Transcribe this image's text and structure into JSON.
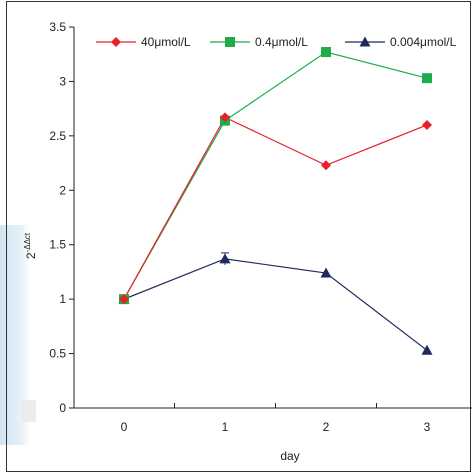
{
  "chart_data": {
    "type": "line",
    "title": "",
    "xlabel": "day",
    "ylabel": "2-ΔΔct",
    "ylabel_base": "2",
    "ylabel_exp": "-ΔΔct",
    "categories": [
      "0",
      "1",
      "2",
      "3"
    ],
    "x": [
      0,
      1,
      2,
      3
    ],
    "ylim": [
      0,
      3.5
    ],
    "yticks": [
      0,
      0.5,
      1,
      1.5,
      2,
      2.5,
      3,
      3.5
    ],
    "ytick_labels": [
      "0",
      "0.5",
      "1",
      "1.5",
      "2",
      "2.5",
      "3",
      "3.5"
    ],
    "grid": false,
    "legend_position": "top",
    "series": [
      {
        "name": "40μmol/L",
        "color": "#e8202a",
        "marker": "diamond",
        "values": [
          1.0,
          2.67,
          2.23,
          2.6
        ]
      },
      {
        "name": "0.4μmol/L",
        "color": "#1fac4b",
        "marker": "square",
        "values": [
          1.0,
          2.64,
          3.27,
          3.03
        ]
      },
      {
        "name": "0.004μmol/L",
        "color": "#1f2a5c",
        "marker": "triangle",
        "values": [
          1.0,
          1.37,
          1.24,
          0.53
        ]
      }
    ]
  }
}
